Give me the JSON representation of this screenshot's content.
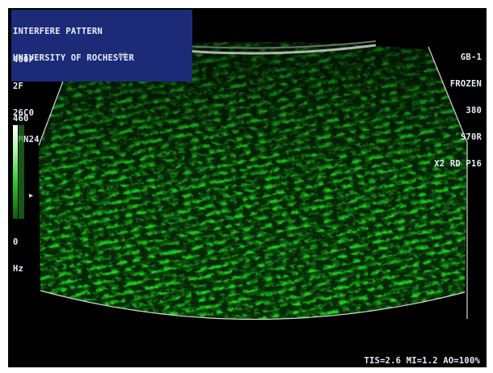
{
  "overlay": {
    "title_line1": "INTERFERE PATTERN",
    "title_line2": "UNIVERSITY OF ROCHESTER",
    "left_params": [
      "460P",
      "2F",
      "26C0",
      "IMN24"
    ],
    "right_params": [
      "GB-1",
      "FROZEN",
      "380",
      "S70R",
      "X2 RD P16"
    ],
    "scale_top": "460",
    "scale_bottom_value": "0",
    "scale_bottom_unit": "Hz",
    "depth_marker": "8E",
    "footer": "TIS=2.6 MI=1.2 AO=100%"
  },
  "image": {
    "type": "ultrasound color-flow sector",
    "content": "green interference fringe pattern",
    "fringe_count": 11
  },
  "colors": {
    "background": "#000000",
    "title_bg": "#1c2a78",
    "text": "#e8eef8",
    "flow_green": "#22ff22",
    "sector_outline": "#d8d8d8"
  }
}
